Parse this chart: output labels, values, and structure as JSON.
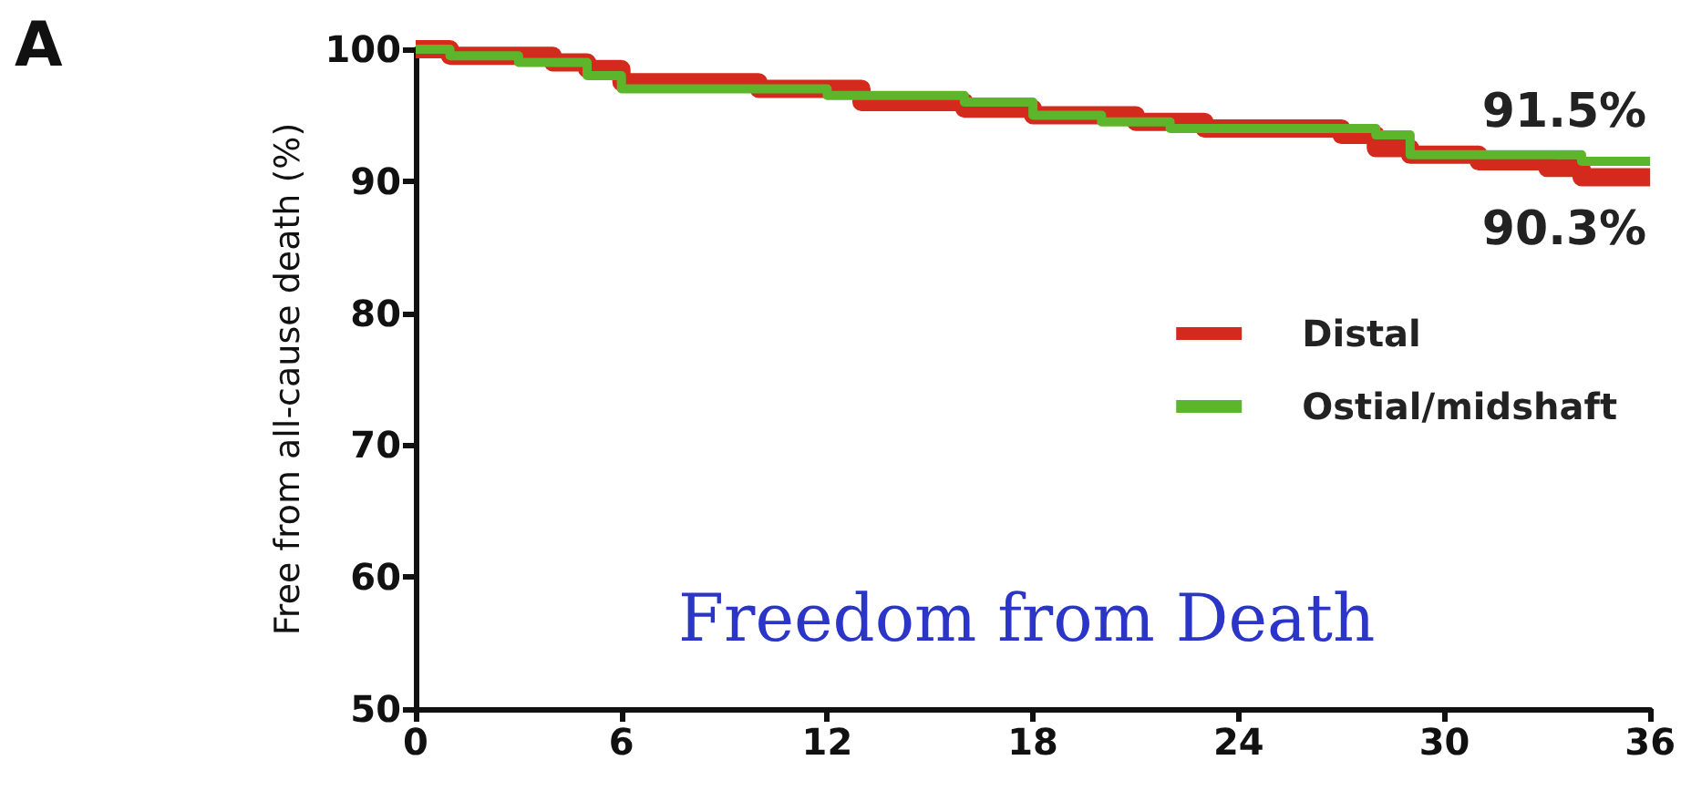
{
  "chart_data": {
    "type": "step",
    "ylabel": "Free from all-cause death (%)",
    "x": [
      0,
      1,
      3,
      4,
      5,
      6,
      10,
      12,
      13,
      16,
      18,
      20,
      21,
      22,
      23,
      27,
      28,
      29,
      31,
      33,
      34,
      36
    ],
    "series": [
      {
        "name": "Distal",
        "color": "#d42a1e",
        "values": [
          100,
          99.5,
          99.5,
          99,
          98.5,
          97.5,
          97,
          97,
          96,
          95.5,
          95,
          95,
          94.5,
          94.5,
          94,
          93.5,
          92.5,
          92,
          91.5,
          91,
          90.3,
          90.3
        ]
      },
      {
        "name": "Ostial/midshaft",
        "color": "#5db52c",
        "values": [
          100,
          99.5,
          99,
          99,
          98,
          97,
          97,
          96.5,
          96.5,
          96,
          95,
          94.5,
          94.5,
          94,
          94,
          94,
          93.5,
          92,
          92,
          92,
          91.5,
          91.5
        ]
      }
    ],
    "xlim": [
      0,
      36
    ],
    "xticks": [
      0,
      6,
      12,
      18,
      24,
      30,
      36
    ],
    "ylim": [
      50,
      100
    ],
    "yticks": [
      50,
      60,
      70,
      80,
      90,
      100
    ],
    "grid": false,
    "legend": "right",
    "marker": "none",
    "line_style": "solid",
    "annotations": [
      "A",
      "Freedom from Death",
      {
        "text": "91.5%",
        "x": 36,
        "y": 91.5
      },
      {
        "text": "90.3%",
        "x": 36,
        "y": 90.3
      }
    ]
  }
}
